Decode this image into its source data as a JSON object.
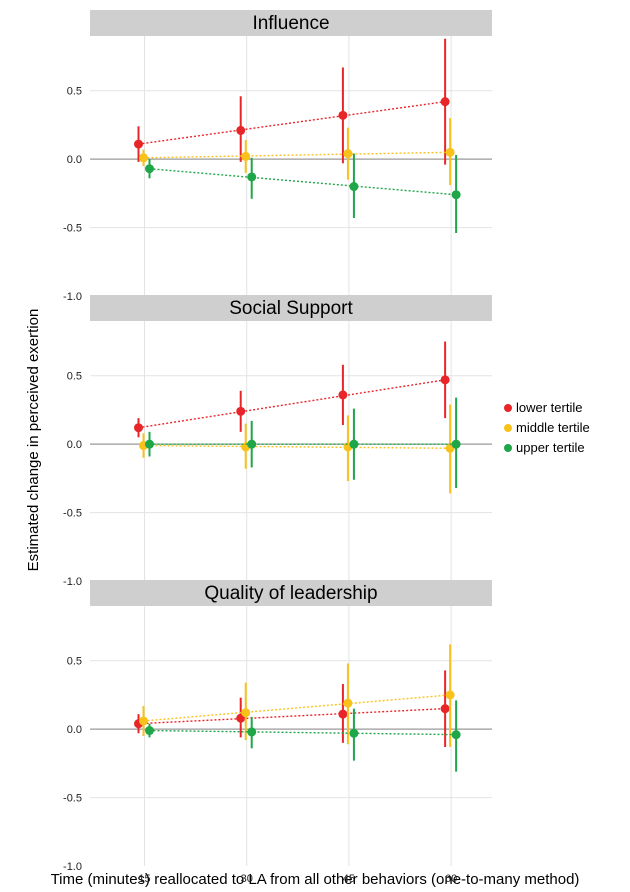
{
  "chart_data": {
    "type": "scatter",
    "ylabel": "Estimated change in perceived exertion",
    "xlabel": "Time (minutes) reallocated to LA from all other behaviors (one-to-many method)",
    "x_ticks": [
      15,
      30,
      45,
      60
    ],
    "y_ticks": [
      -1.0,
      -0.5,
      0.0,
      0.5
    ],
    "y_tick_labels": [
      "-1.0",
      "-0.5",
      "0.0",
      "0.5"
    ],
    "xlim": [
      7,
      66
    ],
    "ylim": [
      -1.0,
      0.9
    ],
    "legend_position": "right",
    "legend": [
      {
        "name": "lower tertile",
        "color": "#e8262a"
      },
      {
        "name": "middle tertile",
        "color": "#f9c21b"
      },
      {
        "name": "upper tertile",
        "color": "#1fa648"
      }
    ],
    "panels": [
      {
        "title": "Influence",
        "series": [
          {
            "name": "lower tertile",
            "x": [
              15,
              30,
              45,
              60
            ],
            "y": [
              0.11,
              0.21,
              0.32,
              0.42
            ],
            "lower": [
              -0.02,
              -0.02,
              -0.03,
              -0.04
            ],
            "upper": [
              0.24,
              0.46,
              0.67,
              0.88
            ]
          },
          {
            "name": "middle tertile",
            "x": [
              15,
              30,
              45,
              60
            ],
            "y": [
              0.01,
              0.02,
              0.04,
              0.05
            ],
            "lower": [
              -0.05,
              -0.1,
              -0.15,
              -0.19
            ],
            "upper": [
              0.07,
              0.14,
              0.23,
              0.3
            ]
          },
          {
            "name": "upper tertile",
            "x": [
              15,
              30,
              45,
              60
            ],
            "y": [
              -0.07,
              -0.13,
              -0.2,
              -0.26
            ],
            "lower": [
              -0.14,
              -0.29,
              -0.43,
              -0.54
            ],
            "upper": [
              0.0,
              0.01,
              0.04,
              0.03
            ]
          }
        ]
      },
      {
        "title": "Social Support",
        "series": [
          {
            "name": "lower tertile",
            "x": [
              15,
              30,
              45,
              60
            ],
            "y": [
              0.12,
              0.24,
              0.36,
              0.47
            ],
            "lower": [
              0.05,
              0.09,
              0.14,
              0.19
            ],
            "upper": [
              0.19,
              0.39,
              0.58,
              0.75
            ]
          },
          {
            "name": "middle tertile",
            "x": [
              15,
              30,
              45,
              60
            ],
            "y": [
              -0.01,
              -0.02,
              -0.02,
              -0.03
            ],
            "lower": [
              -0.1,
              -0.18,
              -0.27,
              -0.36
            ],
            "upper": [
              0.08,
              0.15,
              0.21,
              0.29
            ]
          },
          {
            "name": "upper tertile",
            "x": [
              15,
              30,
              45,
              60
            ],
            "y": [
              0.0,
              0.0,
              0.0,
              0.0
            ],
            "lower": [
              -0.09,
              -0.17,
              -0.26,
              -0.32
            ],
            "upper": [
              0.09,
              0.17,
              0.26,
              0.34
            ]
          }
        ]
      },
      {
        "title": "Quality of leadership",
        "series": [
          {
            "name": "lower tertile",
            "x": [
              15,
              30,
              45,
              60
            ],
            "y": [
              0.04,
              0.08,
              0.11,
              0.15
            ],
            "lower": [
              -0.03,
              -0.06,
              -0.1,
              -0.13
            ],
            "upper": [
              0.11,
              0.23,
              0.33,
              0.43
            ]
          },
          {
            "name": "middle tertile",
            "x": [
              15,
              30,
              45,
              60
            ],
            "y": [
              0.06,
              0.12,
              0.19,
              0.25
            ],
            "lower": [
              -0.05,
              -0.08,
              -0.11,
              -0.13
            ],
            "upper": [
              0.17,
              0.34,
              0.48,
              0.62
            ]
          },
          {
            "name": "upper tertile",
            "x": [
              15,
              30,
              45,
              60
            ],
            "y": [
              -0.01,
              -0.02,
              -0.03,
              -0.04
            ],
            "lower": [
              -0.06,
              -0.14,
              -0.23,
              -0.31
            ],
            "upper": [
              0.04,
              0.09,
              0.15,
              0.21
            ]
          }
        ]
      }
    ]
  }
}
